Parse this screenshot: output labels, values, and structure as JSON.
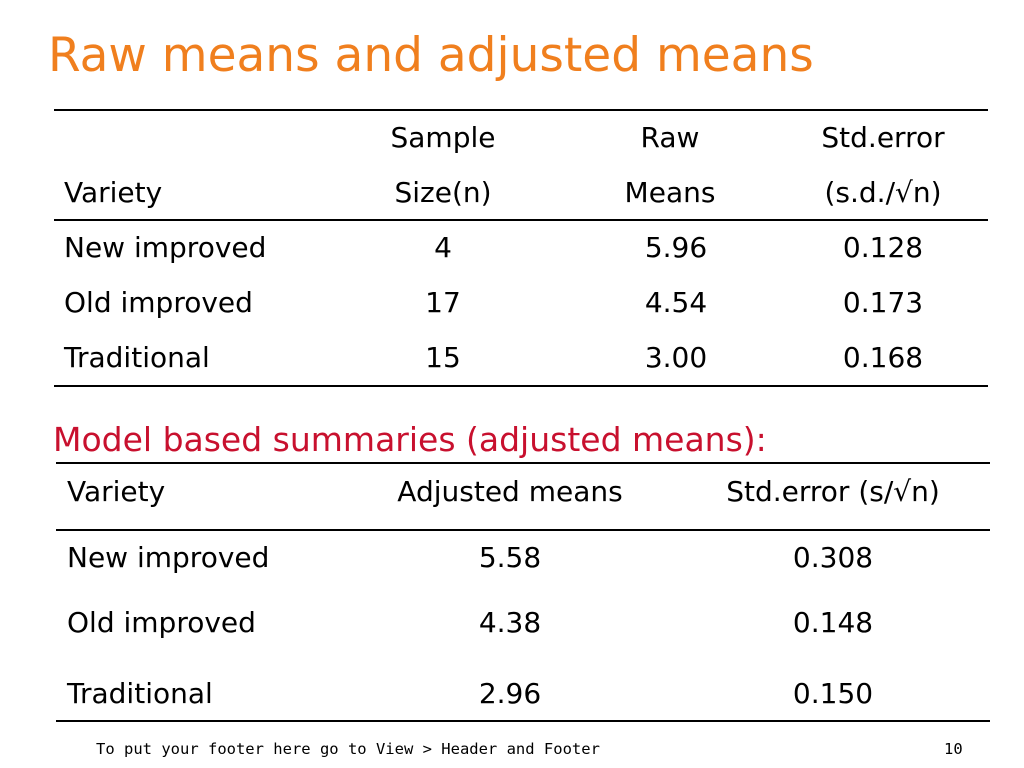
{
  "title": "Raw means and adjusted means",
  "raw_table": {
    "headers": {
      "variety": "Variety",
      "sample_line1": "Sample",
      "sample_line2": "Size(n)",
      "raw_line1": "Raw",
      "raw_line2": "Means",
      "se_line1": "Std.error",
      "se_line2": "(s.d./√n)"
    },
    "rows": [
      {
        "variety": "New improved",
        "n": "4",
        "mean": "5.96",
        "se": "0.128"
      },
      {
        "variety": "Old improved",
        "n": "17",
        "mean": "4.54",
        "se": "0.173"
      },
      {
        "variety": "Traditional",
        "n": "15",
        "mean": "3.00",
        "se": "0.168"
      }
    ]
  },
  "model_section_title": "Model based summaries (adjusted means):",
  "adjusted_table": {
    "headers": {
      "variety": "Variety",
      "adjusted": "Adjusted means",
      "se": "Std.error (s/√n)"
    },
    "rows": [
      {
        "variety": "New improved",
        "mean": "5.58",
        "se": "0.308"
      },
      {
        "variety": "Old improved",
        "mean": "4.38",
        "se": "0.148"
      },
      {
        "variety": "Traditional",
        "mean": "2.96",
        "se": "0.150"
      }
    ]
  },
  "footer": "To put your footer here go to View > Header and Footer",
  "page_number": "10",
  "colors": {
    "title": "#f07f1e",
    "subtitle": "#c8102e"
  }
}
